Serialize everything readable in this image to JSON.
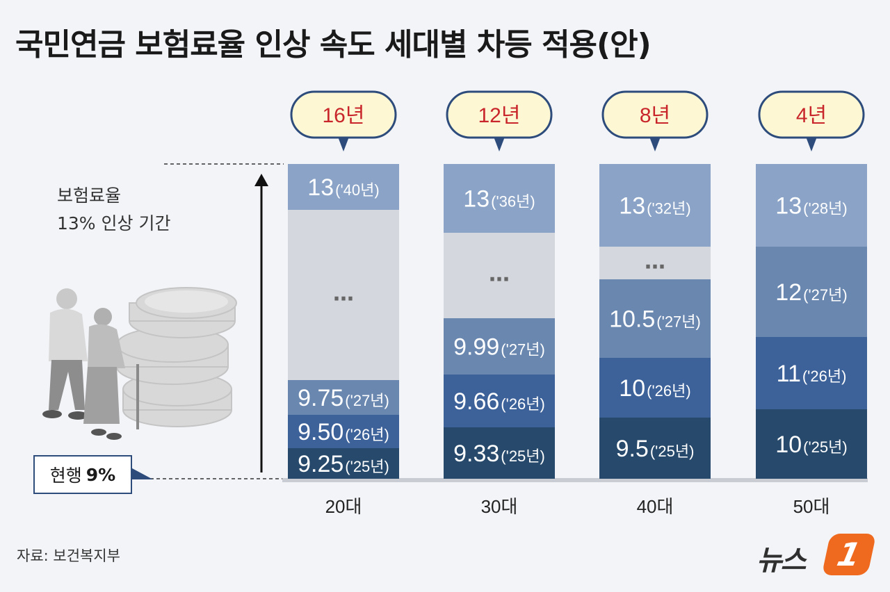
{
  "title": "국민연금 보험료율 인상 속도 세대별 차등 적용(안)",
  "ylabel_line1": "보험료율",
  "ylabel_line2": "13% 인상 기간",
  "current": {
    "label": "현행",
    "value": "9%"
  },
  "source": "자료: 보건복지부",
  "logo": {
    "text": "뉴스",
    "badge": "1"
  },
  "colors": {
    "seg13": "#8aa3c6",
    "seg12": "#6a87b0",
    "seg11": "#3e5e93",
    "seg10": "#2b4f82",
    "seg_dark": "#274a6c",
    "seg_mid": "#3d6199",
    "seg_light": "#6a87b0",
    "gap": "#d4d7de",
    "bubble_fill": "#fdf7d3",
    "bubble_stroke": "#2d4c7c",
    "bubble_text": "#c8262a"
  },
  "chart_data": {
    "type": "bar",
    "categories": [
      "20대",
      "30대",
      "40대",
      "50대"
    ],
    "periods": [
      "16년",
      "12년",
      "8년",
      "4년"
    ],
    "ylim_percent": [
      9,
      13
    ],
    "groups": [
      {
        "category": "20대",
        "period": "16년",
        "steps": [
          {
            "rate": "9.25",
            "year": "('25년)"
          },
          {
            "rate": "9.50",
            "year": "('26년)"
          },
          {
            "rate": "9.75",
            "year": "('27년)"
          },
          {
            "rate": "…",
            "year": ""
          },
          {
            "rate": "13",
            "year": "('40년)"
          }
        ]
      },
      {
        "category": "30대",
        "period": "12년",
        "steps": [
          {
            "rate": "9.33",
            "year": "('25년)"
          },
          {
            "rate": "9.66",
            "year": "('26년)"
          },
          {
            "rate": "9.99",
            "year": "('27년)"
          },
          {
            "rate": "…",
            "year": ""
          },
          {
            "rate": "13",
            "year": "('36년)"
          }
        ]
      },
      {
        "category": "40대",
        "period": "8년",
        "steps": [
          {
            "rate": "9.5",
            "year": "('25년)"
          },
          {
            "rate": "10",
            "year": "('26년)"
          },
          {
            "rate": "10.5",
            "year": "('27년)"
          },
          {
            "rate": "…",
            "year": ""
          },
          {
            "rate": "13",
            "year": "('32년)"
          }
        ]
      },
      {
        "category": "50대",
        "period": "4년",
        "steps": [
          {
            "rate": "10",
            "year": "('25년)"
          },
          {
            "rate": "11",
            "year": "('26년)"
          },
          {
            "rate": "12",
            "year": "('27년)"
          },
          {
            "rate": "13",
            "year": "('28년)"
          }
        ]
      }
    ]
  }
}
